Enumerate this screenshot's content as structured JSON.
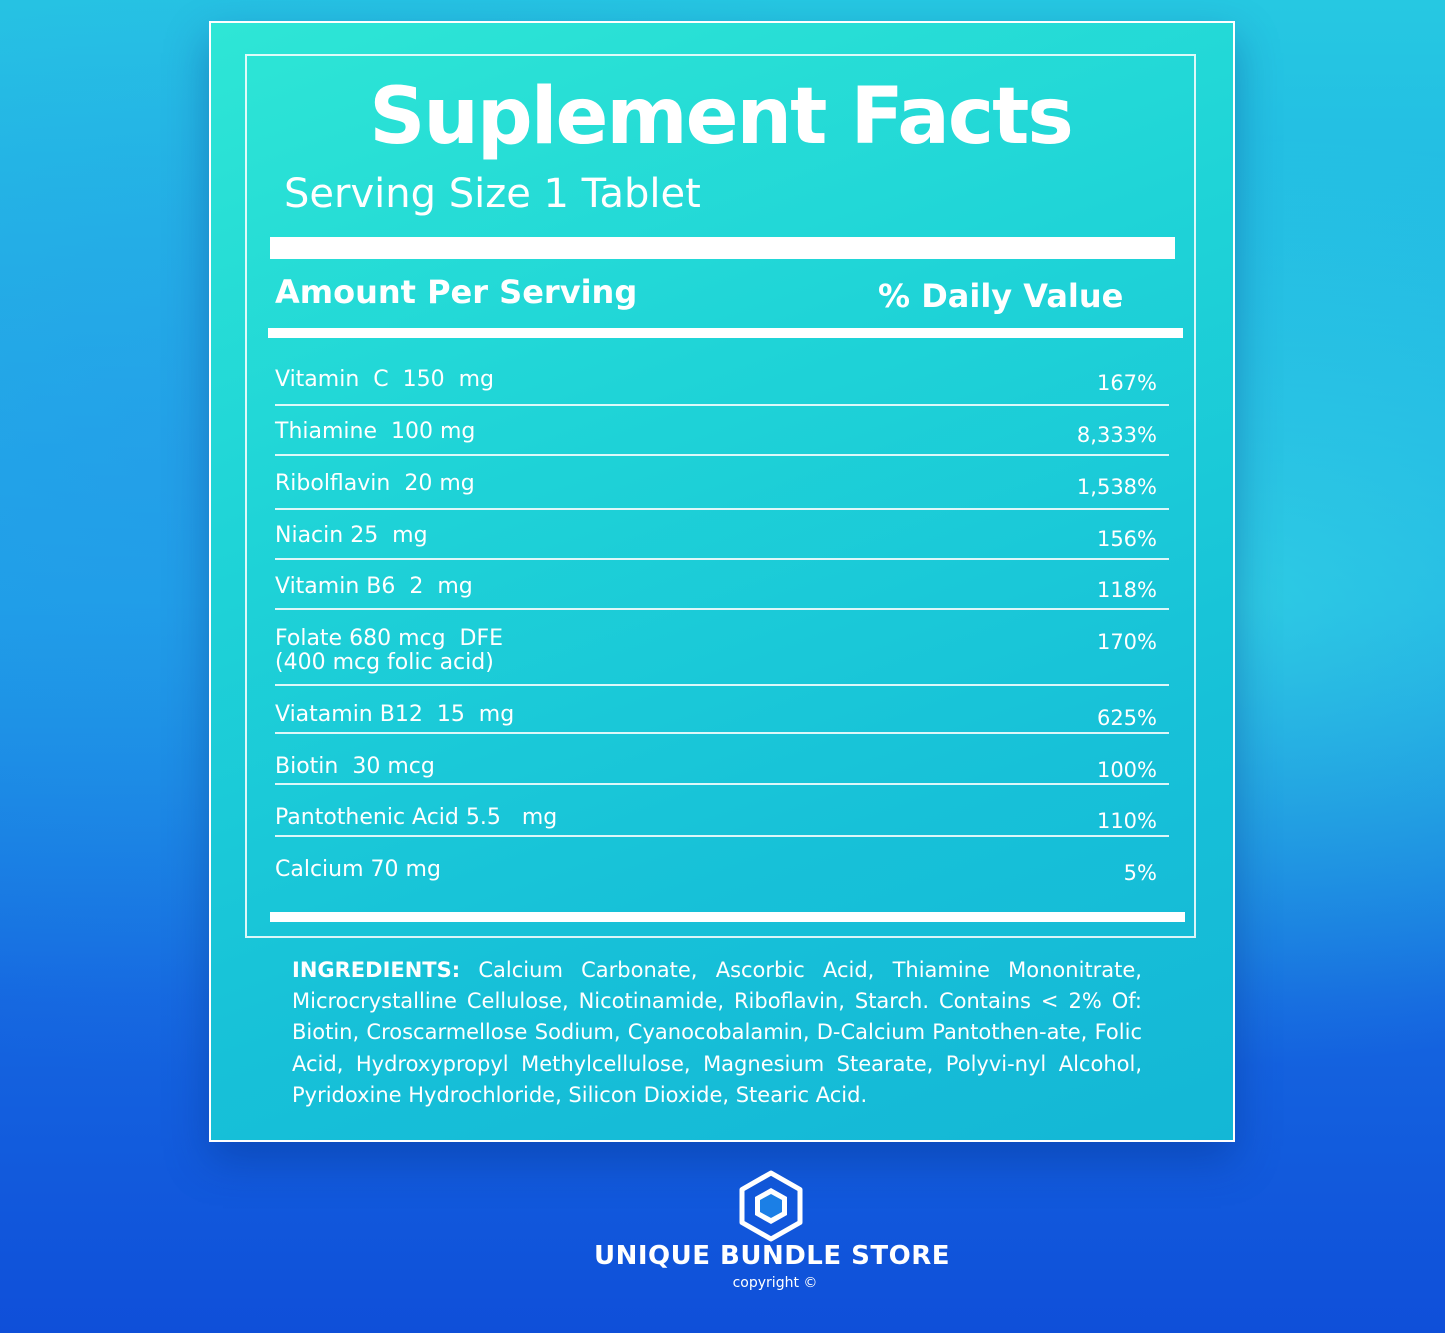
{
  "label": {
    "title": "Suplement Facts",
    "serving_size": "Serving Size 1 Tablet",
    "amount_header": "Amount Per Serving",
    "dv_header": "% Daily Value",
    "rows": [
      {
        "name": "Vitamin  C  150  mg",
        "dv": "167%"
      },
      {
        "name": "Thiamine  100 mg",
        "dv": "8,333%"
      },
      {
        "name": "Ribolflavin  20 mg",
        "dv": "1,538%"
      },
      {
        "name": "Niacin 25  mg",
        "dv": "156%"
      },
      {
        "name": "Vitamin B6  2  mg",
        "dv": "118%"
      },
      {
        "name": "Folate 680 mcg  DFE\n(400 mcg folic acid)",
        "dv": "170%"
      },
      {
        "name": "Viatamin B12  15  mg",
        "dv": "625%"
      },
      {
        "name": "Biotin  30 mcg",
        "dv": "100%"
      },
      {
        "name": "Pantothenic Acid 5.5   mg",
        "dv": "110%"
      },
      {
        "name": "Calcium 70 mg",
        "dv": "5%"
      }
    ],
    "ingredients_label": "INGREDIENTS:",
    "ingredients_text": "Calcium Carbonate, Ascorbic Acid, Thiamine Mononitrate, Microcrystalline Cellulose, Nicotinamide, Riboflavin, Starch. Contains < 2% Of: Biotin, Croscarmellose Sodium, Cyanocobalamin, D-Calcium Pantothen-ate, Folic Acid, Hydroxypropyl Methylcellulose, Magnesium Stearate, Polyvi-nyl Alcohol, Pyridoxine Hydrochloride, Silicon Dioxide, Stearic Acid."
  },
  "brand": {
    "logo_icon": "hexagon-logo-icon",
    "name": "UNIQUE BUNDLE STORE",
    "copyright": "copyright ©"
  },
  "colors": {
    "panel": "#1fd4d7",
    "background_top": "#26c8e2",
    "background_bottom": "#0f4fd9",
    "text": "#ffffff"
  }
}
